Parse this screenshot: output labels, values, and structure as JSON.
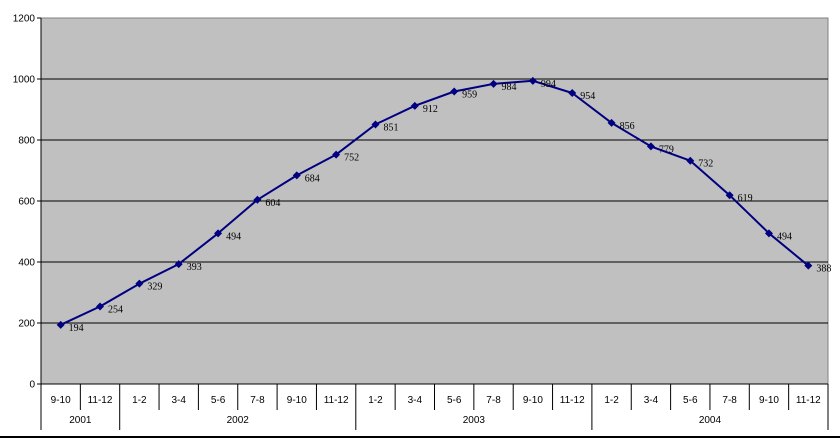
{
  "chart_data": {
    "type": "line",
    "title": "",
    "xlabel": "",
    "ylabel": "",
    "ylim": [
      0,
      1200
    ],
    "yticks": [
      0,
      200,
      400,
      600,
      800,
      1000,
      1200
    ],
    "grid": true,
    "legend": "none",
    "colors": {
      "plot_bg": "#c0c0c0",
      "line": "#000080",
      "grid": "#000000"
    },
    "categories": [
      "9-10",
      "11-12",
      "1-2",
      "3-4",
      "5-6",
      "7-8",
      "9-10",
      "11-12",
      "1-2",
      "3-4",
      "5-6",
      "7-8",
      "9-10",
      "11-12",
      "1-2",
      "3-4",
      "5-6",
      "7-8",
      "9-10",
      "11-12"
    ],
    "groups": [
      {
        "label": "2001",
        "count": 2
      },
      {
        "label": "2002",
        "count": 6
      },
      {
        "label": "2003",
        "count": 6
      },
      {
        "label": "2004",
        "count": 6
      }
    ],
    "series": [
      {
        "values": [
          194,
          254,
          329,
          393,
          494,
          604,
          684,
          752,
          851,
          912,
          959,
          984,
          994,
          954,
          856,
          779,
          732,
          619,
          494,
          388
        ]
      }
    ]
  }
}
